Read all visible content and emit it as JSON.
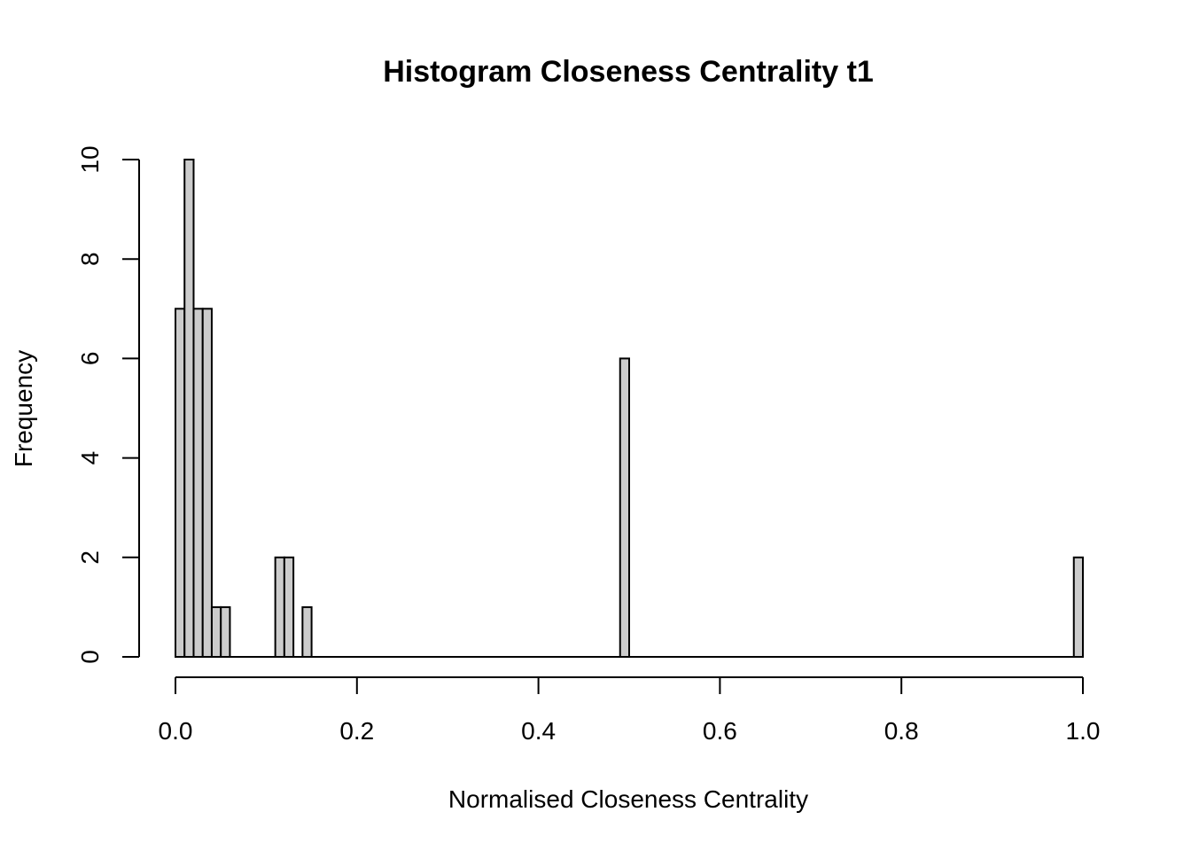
{
  "chart_data": {
    "type": "bar",
    "title": "Histogram Closeness Centrality t1",
    "xlabel": "Normalised Closeness Centrality",
    "ylabel": "Frequency",
    "xlim": [
      0,
      1
    ],
    "ylim": [
      0,
      10
    ],
    "x_ticks": [
      0,
      0.2,
      0.4,
      0.6,
      0.8,
      1.0
    ],
    "x_tick_labels": [
      "0.0",
      "0.2",
      "0.4",
      "0.6",
      "0.8",
      "1.0"
    ],
    "y_ticks": [
      0,
      2,
      4,
      6,
      8,
      10
    ],
    "y_tick_labels": [
      "0",
      "2",
      "4",
      "6",
      "8",
      "10"
    ],
    "bin_width": 0.01,
    "bin_start": 0,
    "bin_end": 1,
    "nonzero_bins": [
      {
        "start": 0.0,
        "end": 0.01,
        "count": 7
      },
      {
        "start": 0.01,
        "end": 0.02,
        "count": 10
      },
      {
        "start": 0.02,
        "end": 0.03,
        "count": 7
      },
      {
        "start": 0.03,
        "end": 0.04,
        "count": 7
      },
      {
        "start": 0.04,
        "end": 0.05,
        "count": 1
      },
      {
        "start": 0.05,
        "end": 0.06,
        "count": 1
      },
      {
        "start": 0.11,
        "end": 0.12,
        "count": 2
      },
      {
        "start": 0.12,
        "end": 0.13,
        "count": 2
      },
      {
        "start": 0.14,
        "end": 0.15,
        "count": 1
      },
      {
        "start": 0.49,
        "end": 0.5,
        "count": 6
      },
      {
        "start": 0.99,
        "end": 1.0,
        "count": 2
      }
    ],
    "bar_fill": "#cccccc",
    "bar_stroke": "#000000",
    "grid": false,
    "legend": "none"
  }
}
